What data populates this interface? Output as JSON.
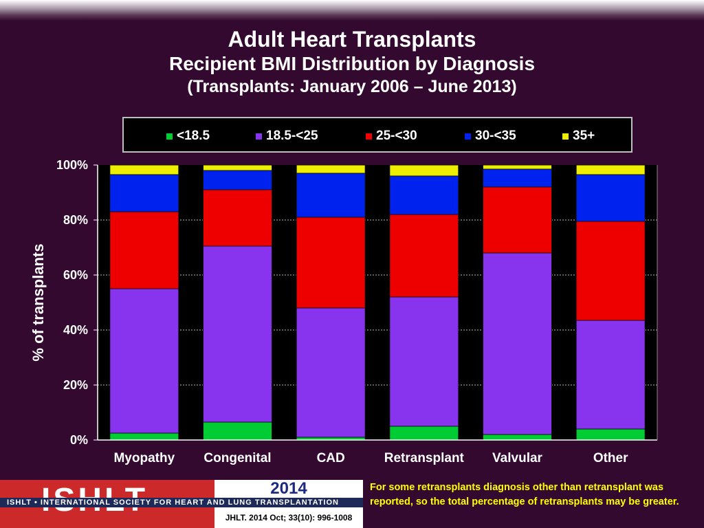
{
  "title": {
    "line1": "Adult Heart Transplants",
    "line2": "Recipient BMI Distribution by Diagnosis",
    "line3": "(Transplants: January 2006 – June 2013)"
  },
  "legend": [
    {
      "label": "<18.5",
      "color": "#00cc33"
    },
    {
      "label": "18.5-<25",
      "color": "#8833ee"
    },
    {
      "label": "25-<30",
      "color": "#ee0000"
    },
    {
      "label": "30-<35",
      "color": "#0022ee"
    },
    {
      "label": "35+",
      "color": "#eeee00"
    }
  ],
  "chart_data": {
    "type": "bar",
    "stacked": true,
    "ylabel": "% of transplants",
    "ylim": [
      0,
      100
    ],
    "yticks": [
      "0%",
      "20%",
      "40%",
      "60%",
      "80%",
      "100%"
    ],
    "categories": [
      "Myopathy",
      "Congenital",
      "CAD",
      "Retransplant",
      "Valvular",
      "Other"
    ],
    "series": [
      {
        "name": "<18.5",
        "color": "#00cc33",
        "values": [
          2.5,
          6.5,
          1.0,
          5.0,
          2.0,
          4.0
        ]
      },
      {
        "name": "18.5-<25",
        "color": "#8833ee",
        "values": [
          52.5,
          64.0,
          47.0,
          47.0,
          66.0,
          39.5
        ]
      },
      {
        "name": "25-<30",
        "color": "#ee0000",
        "values": [
          28.0,
          20.5,
          33.0,
          30.0,
          24.0,
          36.0
        ]
      },
      {
        "name": "30-<35",
        "color": "#0022ee",
        "values": [
          13.5,
          7.0,
          16.0,
          14.0,
          6.5,
          17.0
        ]
      },
      {
        "name": "35+",
        "color": "#eeee00",
        "values": [
          3.5,
          2.0,
          3.0,
          4.0,
          1.5,
          3.5
        ]
      }
    ],
    "grid": true,
    "legend_position": "top"
  },
  "footer": {
    "logo": "ISHLT",
    "society": "ISHLT • INTERNATIONAL SOCIETY FOR HEART AND LUNG TRANSPLANTATION",
    "year": "2014",
    "citation": "JHLT. 2014 Oct; 33(10): 996-1008",
    "note": "For some retransplants diagnosis other than retransplant was reported, so the total percentage of retransplants may be greater."
  }
}
